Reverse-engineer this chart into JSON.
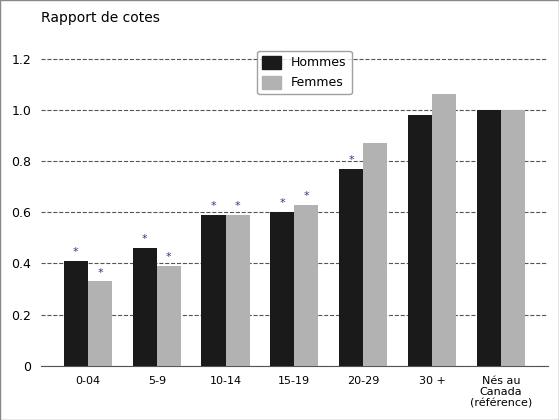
{
  "categories": [
    "0-04",
    "5-9",
    "10-14",
    "15-19",
    "20-29",
    "30 +",
    "Nés au\nCanada\n(référence)"
  ],
  "hommes": [
    0.41,
    0.46,
    0.59,
    0.6,
    0.77,
    0.98,
    1.0
  ],
  "femmes": [
    0.33,
    0.39,
    0.59,
    0.63,
    0.87,
    1.06,
    1.0
  ],
  "hommes_star": [
    true,
    true,
    true,
    true,
    true,
    false,
    false
  ],
  "femmes_star": [
    true,
    true,
    true,
    true,
    false,
    false,
    false
  ],
  "bar_color_hommes": "#1a1a1a",
  "bar_color_femmes": "#b2b2b2",
  "ylabel": "Rapport de cotes",
  "ylim": [
    0,
    1.28
  ],
  "yticks": [
    0,
    0.2,
    0.4,
    0.6,
    0.8,
    1.0,
    1.2
  ],
  "grid_color": "#555555",
  "background_color": "#ffffff",
  "legend_hommes": "Hommes",
  "legend_femmes": "Femmes",
  "bar_width": 0.35,
  "star_color": "#333388"
}
